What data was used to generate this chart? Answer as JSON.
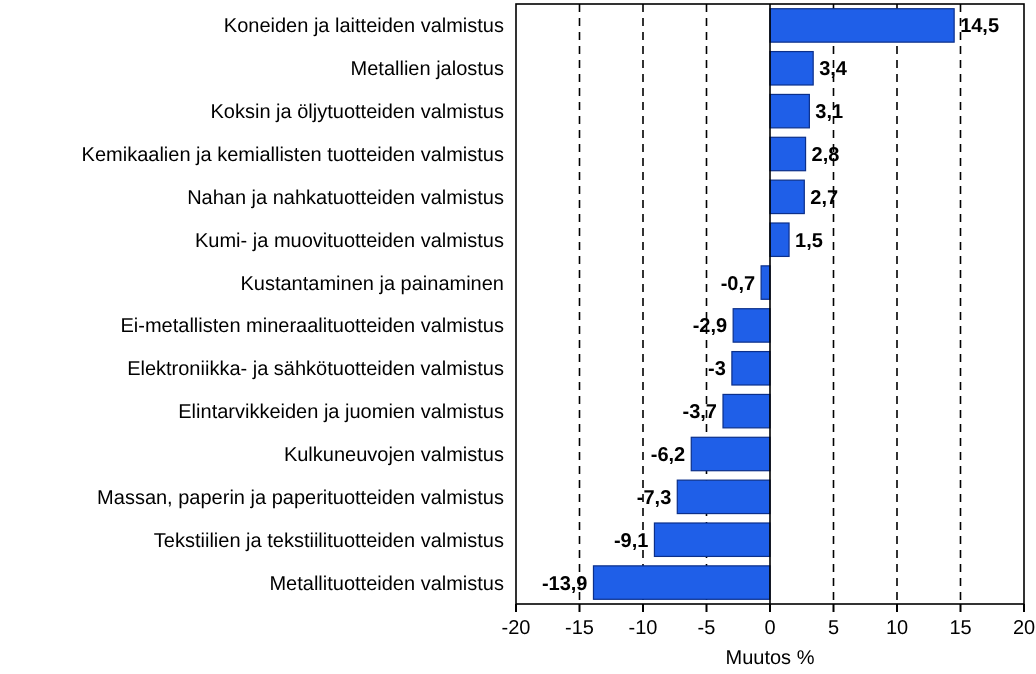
{
  "chart_data": {
    "type": "bar",
    "orientation": "horizontal",
    "xlabel": "Muutos %",
    "categories": [
      "Koneiden ja laitteiden valmistus",
      "Metallien jalostus",
      "Koksin ja öljytuotteiden valmistus",
      "Kemikaalien ja kemiallisten tuotteiden valmistus",
      "Nahan ja nahkatuotteiden valmistus",
      "Kumi- ja muovituotteiden valmistus",
      "Kustantaminen ja painaminen",
      "Ei-metallisten mineraalituotteiden valmistus",
      "Elektroniikka- ja sähkötuotteiden valmistus",
      "Elintarvikkeiden ja juomien valmistus",
      "Kulkuneuvojen valmistus",
      "Massan, paperin ja paperituotteiden valmistus",
      "Tekstiilien ja tekstiilituotteiden valmistus",
      "Metallituotteiden valmistus"
    ],
    "values": [
      14.5,
      3.4,
      3.1,
      2.8,
      2.7,
      1.5,
      -0.7,
      -2.9,
      -3,
      -3.7,
      -6.2,
      -7.3,
      -9.1,
      -13.9
    ],
    "value_labels": [
      "14,5",
      "3,4",
      "3,1",
      "2,8",
      "2,7",
      "1,5",
      "-0,7",
      "-2,9",
      "-3",
      "-3,7",
      "-6,2",
      "-7,3",
      "-9,1",
      "-13,9"
    ],
    "color": "#1f5fe8",
    "xlim": [
      -20,
      20
    ],
    "xticks": [
      -20,
      -15,
      -10,
      -5,
      0,
      5,
      10,
      15,
      20
    ],
    "grid": "x"
  }
}
